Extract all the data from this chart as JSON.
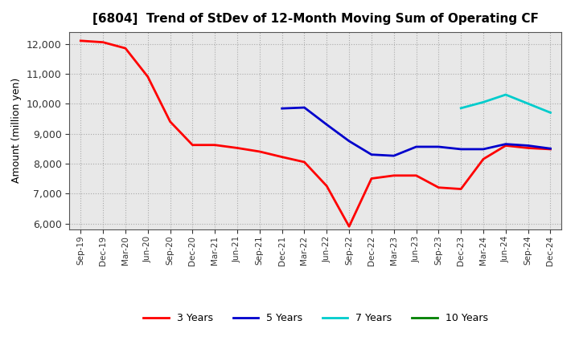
{
  "title": "[6804]  Trend of StDev of 12-Month Moving Sum of Operating CF",
  "ylabel": "Amount (million yen)",
  "ylim": [
    5800,
    12400
  ],
  "yticks": [
    6000,
    7000,
    8000,
    9000,
    10000,
    11000,
    12000
  ],
  "background_color": "#ffffff",
  "plot_background_color": "#e8e8e8",
  "grid_color": "#aaaaaa",
  "series": {
    "3 Years": {
      "color": "#ff0000",
      "x": [
        "Sep-19",
        "Dec-19",
        "Mar-20",
        "Jun-20",
        "Sep-20",
        "Dec-20",
        "Mar-21",
        "Jun-21",
        "Sep-21",
        "Dec-21",
        "Mar-22",
        "Jun-22",
        "Sep-22",
        "Dec-22",
        "Mar-23",
        "Jun-23",
        "Sep-23",
        "Dec-23",
        "Mar-24",
        "Jun-24",
        "Sep-24",
        "Dec-24"
      ],
      "y": [
        12100,
        12050,
        11850,
        10900,
        9400,
        8620,
        8620,
        8520,
        8400,
        8220,
        8050,
        7250,
        5900,
        7500,
        7600,
        7600,
        7200,
        7150,
        8150,
        8600,
        8520,
        8480
      ]
    },
    "5 Years": {
      "color": "#0000cc",
      "x": [
        "Dec-21",
        "Mar-22",
        "Jun-22",
        "Sep-22",
        "Dec-22",
        "Mar-23",
        "Jun-23",
        "Sep-23",
        "Dec-23",
        "Mar-24",
        "Jun-24",
        "Sep-24",
        "Dec-24"
      ],
      "y": [
        9840,
        9870,
        9300,
        8750,
        8300,
        8260,
        8560,
        8560,
        8480,
        8480,
        8650,
        8600,
        8500
      ]
    },
    "7 Years": {
      "color": "#00cccc",
      "x": [
        "Dec-23",
        "Mar-24",
        "Jun-24",
        "Sep-24",
        "Dec-24"
      ],
      "y": [
        9850,
        10050,
        10300,
        10000,
        9700
      ]
    },
    "10 Years": {
      "color": "#008000",
      "x": [],
      "y": []
    }
  },
  "xtick_labels": [
    "Sep-19",
    "Dec-19",
    "Mar-20",
    "Jun-20",
    "Sep-20",
    "Dec-20",
    "Mar-21",
    "Jun-21",
    "Sep-21",
    "Dec-21",
    "Mar-22",
    "Jun-22",
    "Sep-22",
    "Dec-22",
    "Mar-23",
    "Jun-23",
    "Sep-23",
    "Dec-23",
    "Mar-24",
    "Jun-24",
    "Sep-24",
    "Dec-24"
  ],
  "legend_labels": [
    "3 Years",
    "5 Years",
    "7 Years",
    "10 Years"
  ],
  "legend_colors": [
    "#ff0000",
    "#0000cc",
    "#00cccc",
    "#008000"
  ]
}
